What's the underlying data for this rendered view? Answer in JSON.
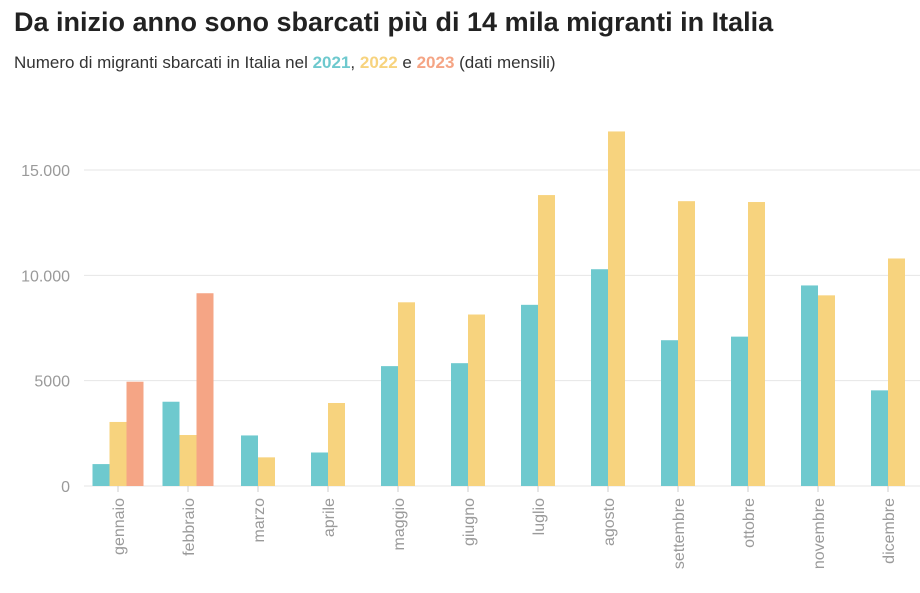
{
  "header": {
    "title": "Da inizio anno sono sbarcati più di 14 mila migranti in Italia",
    "subtitle_prefix": "Numero di migranti sbarcati in Italia nel ",
    "comma": ", ",
    "and": " e ",
    "subtitle_suffix": " (dati mensili)"
  },
  "colors": {
    "2021": "#6ec9ce",
    "2022": "#f7d37e",
    "2023": "#f5a585",
    "grid": "#e6e6e6",
    "axis_text": "#9a9a9a"
  },
  "chart_data": {
    "type": "bar",
    "title": "Da inizio anno sono sbarcati più di 14 mila migranti in Italia",
    "subtitle": "Numero di migranti sbarcati in Italia nel 2021, 2022 e 2023 (dati mensili)",
    "xlabel": "",
    "ylabel": "",
    "ylim": [
      0,
      17500
    ],
    "yticks": [
      {
        "value": 0,
        "label": "0"
      },
      {
        "value": 5000,
        "label": "5000"
      },
      {
        "value": 10000,
        "label": "10.000"
      },
      {
        "value": 15000,
        "label": "15.000"
      }
    ],
    "grid": true,
    "categories": [
      "gennaio",
      "febbraio",
      "marzo",
      "aprile",
      "maggio",
      "giugno",
      "luglio",
      "agosto",
      "settembre",
      "ottobre",
      "novembre",
      "dicembre"
    ],
    "series": [
      {
        "name": "2021",
        "values": [
          1040,
          4000,
          2400,
          1590,
          5690,
          5830,
          8600,
          10290,
          6920,
          7090,
          9520,
          4540
        ]
      },
      {
        "name": "2022",
        "values": [
          3040,
          2420,
          1360,
          3940,
          8720,
          8140,
          13810,
          16830,
          13520,
          13480,
          9050,
          10800
        ]
      },
      {
        "name": "2023",
        "values": [
          4950,
          9150,
          null,
          null,
          null,
          null,
          null,
          null,
          null,
          null,
          null,
          null
        ]
      }
    ]
  }
}
